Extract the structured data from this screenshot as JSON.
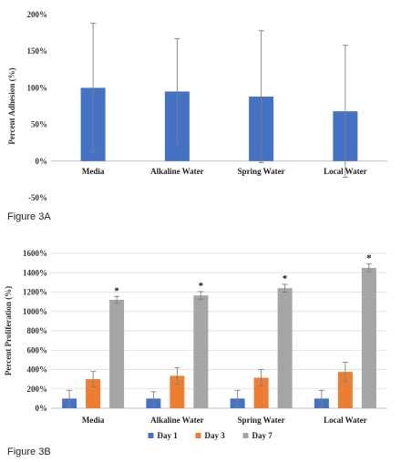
{
  "figure_a_label": "Figure 3A",
  "figure_b_label": "Figure 3B",
  "chart_data": [
    {
      "type": "bar",
      "ylabel": "Percent Adhesion (%)",
      "xlabel": "",
      "categories": [
        "Media",
        "Alkaline Water",
        "Spring Water",
        "Local Water"
      ],
      "series": [
        {
          "values": [
            100,
            95,
            88,
            68
          ],
          "errors": [
            88,
            72,
            90,
            90
          ],
          "color": "#4472C4"
        }
      ],
      "ylim": [
        -50,
        200
      ],
      "yticks": [
        -50,
        0,
        50,
        100,
        150,
        200
      ],
      "ytick_labels": [
        "-50%",
        "0%",
        "50%",
        "100%",
        "150%",
        "200%"
      ],
      "grid": false,
      "legend": "none"
    },
    {
      "type": "bar",
      "ylabel": "Percent Proliferation (%)",
      "xlabel": "",
      "categories": [
        "Media",
        "Alkaline Water",
        "Spring Water",
        "Local Water"
      ],
      "series": [
        {
          "name": "Day 1",
          "values": [
            100,
            100,
            100,
            100
          ],
          "errors": [
            85,
            70,
            85,
            85
          ],
          "color": "#4472C4"
        },
        {
          "name": "Day 3",
          "values": [
            300,
            335,
            315,
            375
          ],
          "errors": [
            80,
            85,
            85,
            100
          ],
          "color": "#ED7D31"
        },
        {
          "name": "Day 7",
          "values": [
            1120,
            1165,
            1240,
            1450
          ],
          "errors": [
            35,
            40,
            40,
            40
          ],
          "color": "#A5A5A5"
        }
      ],
      "significance": [
        "*",
        "*",
        "*",
        "*"
      ],
      "ylim": [
        0,
        1600
      ],
      "yticks": [
        0,
        200,
        400,
        600,
        800,
        1000,
        1200,
        1400,
        1600
      ],
      "ytick_labels": [
        "0%",
        "200%",
        "400%",
        "600%",
        "800%",
        "1000%",
        "1200%",
        "1400%",
        "1600%"
      ],
      "grid": true,
      "legend": "bottom-center"
    }
  ]
}
